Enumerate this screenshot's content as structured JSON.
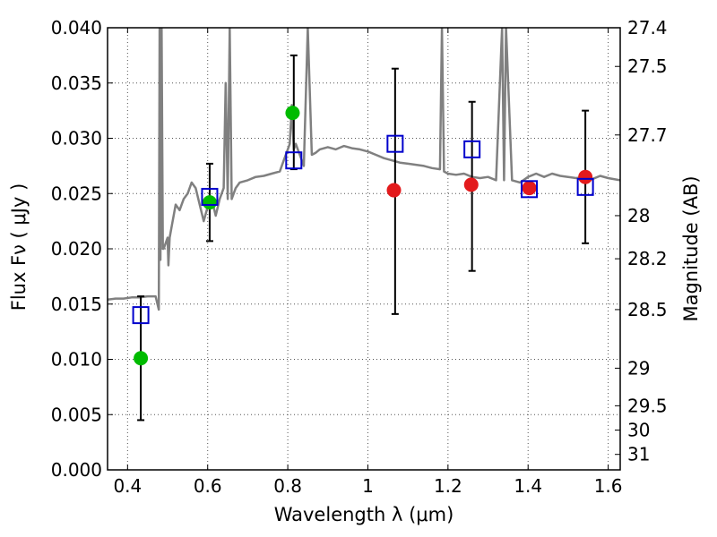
{
  "chart_data": {
    "type": "scatter",
    "xlabel": "Wavelength  λ (μm)",
    "ylabel": "Flux  Fν  ( μJy )",
    "ylabel_right": "Magnitude (AB)",
    "xlim": [
      0.35,
      1.63
    ],
    "ylim": [
      0.0,
      0.04
    ],
    "grid": true,
    "x_ticks": [
      0.4,
      0.6,
      0.8,
      1.0,
      1.2,
      1.4,
      1.6
    ],
    "x_tick_labels": [
      "0.4",
      "0.6",
      "0.8",
      "1",
      "1.2",
      "1.4",
      "1.6"
    ],
    "y_ticks": [
      0.0,
      0.005,
      0.01,
      0.015,
      0.02,
      0.025,
      0.03,
      0.035,
      0.04
    ],
    "y_tick_labels": [
      "0.000",
      "0.005",
      "0.010",
      "0.015",
      "0.020",
      "0.025",
      "0.030",
      "0.035",
      "0.040"
    ],
    "right_ticks": [
      {
        "label": "27.4",
        "flux": 0.04
      },
      {
        "label": "27.5",
        "flux": 0.0365
      },
      {
        "label": "27.7",
        "flux": 0.0303
      },
      {
        "label": "28",
        "flux": 0.023
      },
      {
        "label": "28.2",
        "flux": 0.0191
      },
      {
        "label": "28.5",
        "flux": 0.0145
      },
      {
        "label": "29",
        "flux": 0.0092
      },
      {
        "label": "29.5",
        "flux": 0.0058
      },
      {
        "label": "30",
        "flux": 0.0036
      },
      {
        "label": "31",
        "flux": 0.0014
      }
    ],
    "colors": {
      "spectrum": "#808080",
      "green": "#00bb00",
      "red": "#e31a1c",
      "model": "#0000cc",
      "error": "#000000",
      "grid": "#555555"
    },
    "series": [
      {
        "kind": "spectrum",
        "x": [
          0.35,
          0.37,
          0.39,
          0.41,
          0.43,
          0.45,
          0.47,
          0.478,
          0.48,
          0.482,
          0.485,
          0.488,
          0.49,
          0.495,
          0.5,
          0.502,
          0.505,
          0.51,
          0.52,
          0.53,
          0.54,
          0.55,
          0.56,
          0.57,
          0.58,
          0.59,
          0.6,
          0.61,
          0.62,
          0.63,
          0.64,
          0.645,
          0.65,
          0.655,
          0.66,
          0.67,
          0.68,
          0.7,
          0.72,
          0.74,
          0.76,
          0.78,
          0.79,
          0.8,
          0.805,
          0.81,
          0.815,
          0.82,
          0.83,
          0.84,
          0.85,
          0.86,
          0.87,
          0.88,
          0.9,
          0.92,
          0.94,
          0.96,
          0.98,
          1.0,
          1.02,
          1.04,
          1.06,
          1.08,
          1.1,
          1.12,
          1.14,
          1.16,
          1.18,
          1.185,
          1.19,
          1.2,
          1.22,
          1.24,
          1.26,
          1.28,
          1.3,
          1.32,
          1.335,
          1.34,
          1.345,
          1.36,
          1.38,
          1.4,
          1.42,
          1.44,
          1.46,
          1.48,
          1.5,
          1.52,
          1.54,
          1.56,
          1.58,
          1.6,
          1.63
        ],
        "y": [
          0.0154,
          0.0155,
          0.0155,
          0.0156,
          0.0156,
          0.0157,
          0.0157,
          0.0145,
          0.04,
          0.019,
          0.04,
          0.02,
          0.02,
          0.0205,
          0.021,
          0.0185,
          0.021,
          0.022,
          0.024,
          0.0235,
          0.0245,
          0.025,
          0.026,
          0.0255,
          0.024,
          0.0225,
          0.0238,
          0.0245,
          0.023,
          0.0245,
          0.0255,
          0.035,
          0.0245,
          0.04,
          0.0245,
          0.0255,
          0.026,
          0.0262,
          0.0265,
          0.0266,
          0.0268,
          0.027,
          0.028,
          0.029,
          0.0295,
          0.033,
          0.029,
          0.0295,
          0.0285,
          0.0275,
          0.04,
          0.0285,
          0.0287,
          0.029,
          0.0292,
          0.029,
          0.0293,
          0.0291,
          0.029,
          0.0288,
          0.0285,
          0.0282,
          0.028,
          0.0278,
          0.0277,
          0.0276,
          0.0275,
          0.0273,
          0.0272,
          0.04,
          0.027,
          0.0268,
          0.0267,
          0.0268,
          0.0265,
          0.0264,
          0.0265,
          0.0262,
          0.04,
          0.0262,
          0.04,
          0.0262,
          0.026,
          0.0265,
          0.0268,
          0.0265,
          0.0268,
          0.0266,
          0.0265,
          0.0264,
          0.0265,
          0.0263,
          0.0266,
          0.0264,
          0.0262
        ]
      },
      {
        "kind": "points-green",
        "x": [
          0.433,
          0.605,
          0.812
        ],
        "y": [
          0.0101,
          0.0242,
          0.0323
        ]
      },
      {
        "kind": "points-red",
        "x": [
          1.065,
          1.258,
          1.403,
          1.543
        ],
        "y": [
          0.0253,
          0.0258,
          0.0255,
          0.0265
        ]
      },
      {
        "kind": "model-squares",
        "x": [
          0.433,
          0.605,
          0.815,
          1.068,
          1.26,
          1.403,
          1.543
        ],
        "y": [
          0.014,
          0.0247,
          0.028,
          0.0295,
          0.029,
          0.0254,
          0.0256
        ]
      },
      {
        "kind": "error-bars",
        "x": [
          0.433,
          0.605,
          0.815,
          1.068,
          1.26,
          1.543
        ],
        "low": [
          0.0045,
          0.0207,
          0.0272,
          0.0141,
          0.018,
          0.0205
        ],
        "high": [
          0.0157,
          0.0277,
          0.0375,
          0.0363,
          0.0333,
          0.0325
        ]
      }
    ]
  }
}
